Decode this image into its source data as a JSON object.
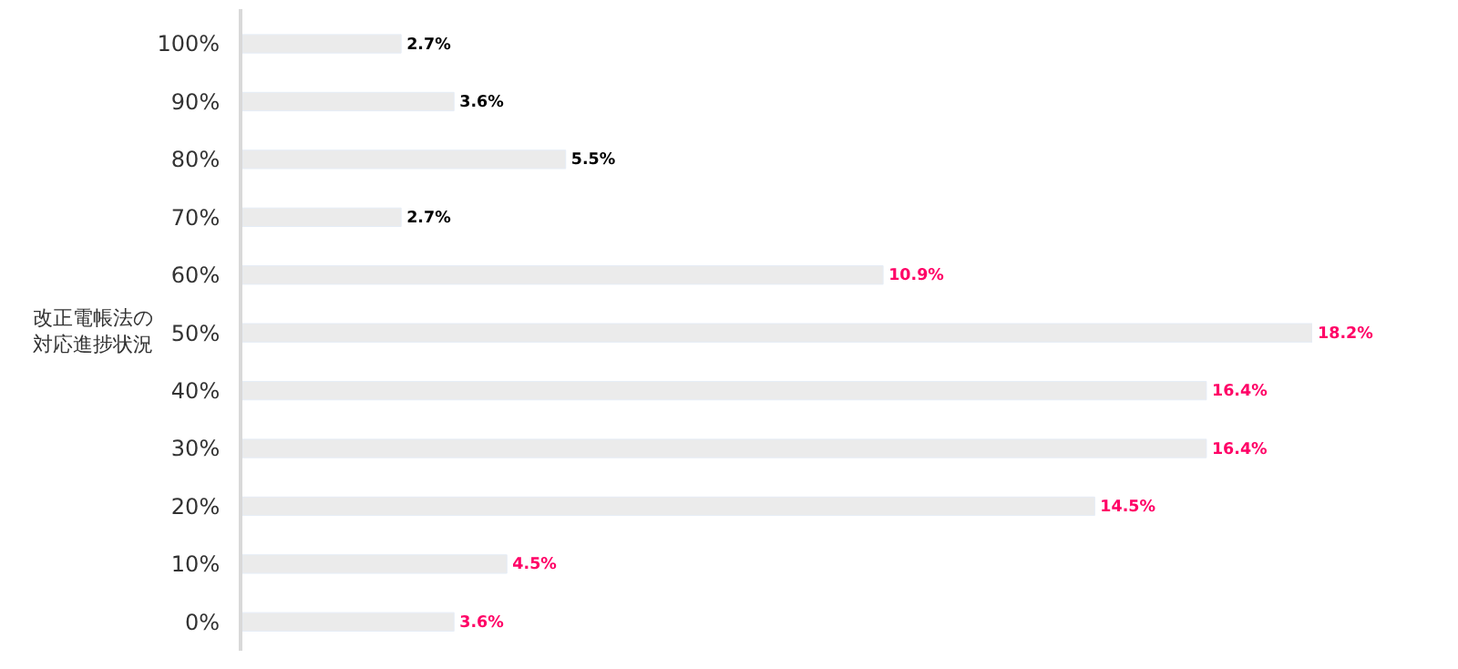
{
  "chart_data": {
    "type": "bar",
    "orientation": "horizontal",
    "ylabel": "改正電帳法の対応進捗状況",
    "categories": [
      "100%",
      "90%",
      "80%",
      "70%",
      "60%",
      "50%",
      "40%",
      "30%",
      "20%",
      "10%",
      "0%"
    ],
    "series": [
      {
        "color": "#ebebeb",
        "values": [
          2.7,
          3.6,
          5.5,
          2.7,
          null,
          null,
          null,
          null,
          null,
          null,
          null
        ],
        "value_labels": [
          "2.7%",
          "3.6%",
          "5.5%",
          "2.7%",
          null,
          null,
          null,
          null,
          null,
          null,
          null
        ]
      },
      {
        "color": "#ebebeb",
        "values": [
          null,
          null,
          null,
          null,
          10.9,
          18.2,
          16.4,
          16.4,
          14.5,
          4.5,
          3.6
        ],
        "value_labels": [
          null,
          null,
          null,
          null,
          "10.9%",
          "18.2%",
          "16.4%",
          "16.4%",
          "14.5%",
          "4.5%",
          "3.6%"
        ]
      }
    ]
  }
}
